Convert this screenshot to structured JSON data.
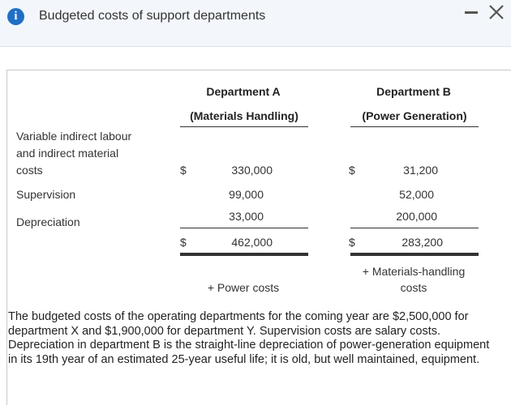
{
  "dialog": {
    "title": "Budgeted costs of support departments",
    "icon": "info-icon"
  },
  "table": {
    "dept_a": {
      "name": "Department A",
      "subtitle": "(Materials Handling)"
    },
    "dept_b": {
      "name": "Department B",
      "subtitle": "(Power Generation)"
    },
    "rows": [
      {
        "label_lines": [
          "Variable indirect labour",
          "and indirect material",
          "costs"
        ],
        "a_currency": "$",
        "a_value": "330,000",
        "b_currency": "$",
        "b_value": "31,200"
      },
      {
        "label_lines": [
          "Supervision"
        ],
        "a_value": "99,000",
        "b_value": "52,000"
      },
      {
        "label_lines": [
          "Depreciation"
        ],
        "a_value": "33,000",
        "b_value": "200,000"
      }
    ],
    "totals": {
      "a_currency": "$",
      "a_value": "462,000",
      "b_currency": "$",
      "b_value": "283,200"
    },
    "notes": {
      "a": "+ Power costs",
      "b_lines": [
        "+ Materials-handling",
        "costs"
      ]
    }
  },
  "description": "The budgeted costs of the operating departments for the coming year are $2,500,000 for department X and $1,900,000 for department Y. Supervision costs are salary costs. Depreciation in department B is the straight-line depreciation of power-generation equipment in its 19th year of an estimated 25-year useful life; it is old, but well maintained, equipment."
}
